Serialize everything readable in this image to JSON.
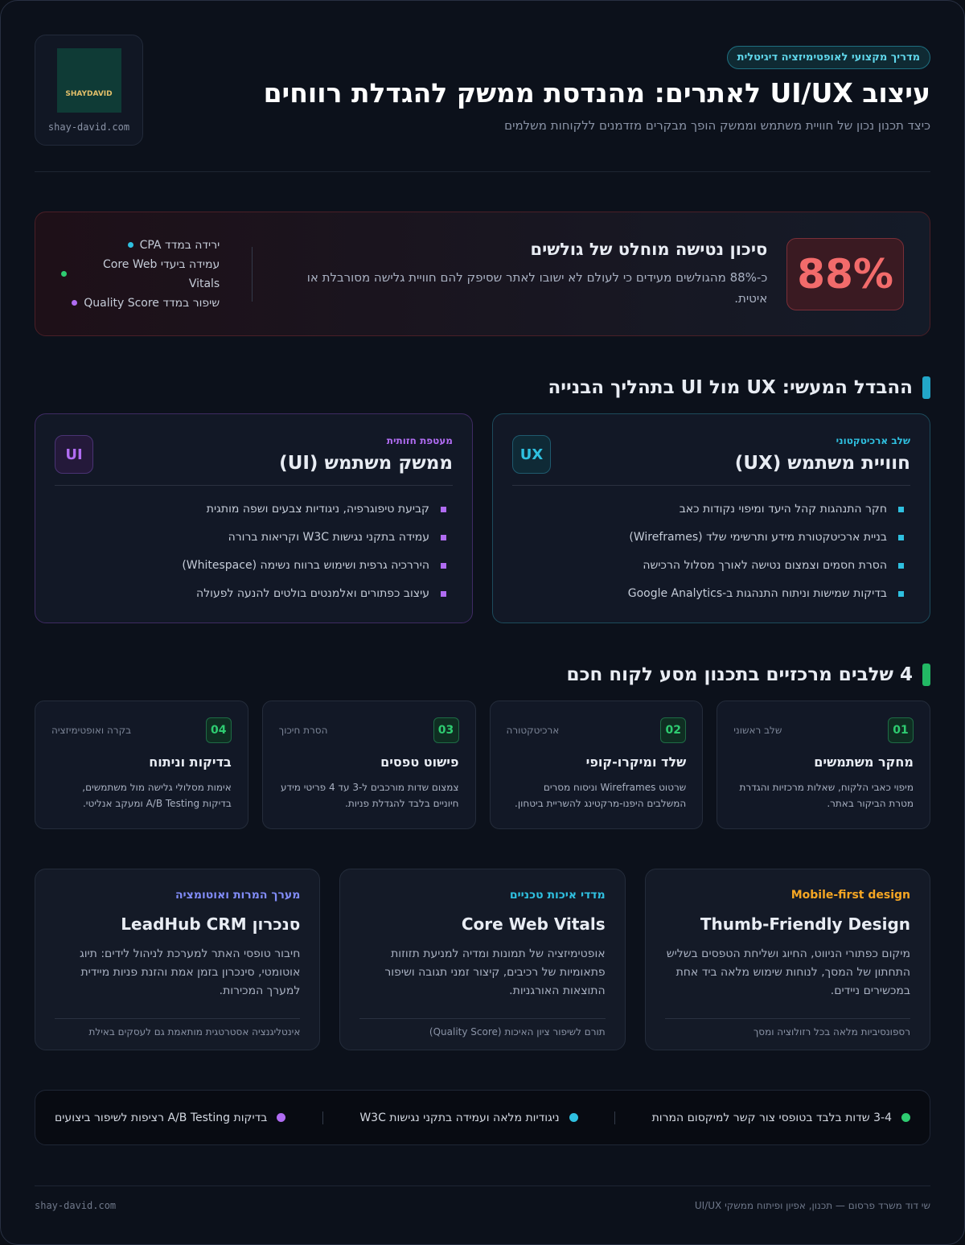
{
  "header": {
    "badge": "מדריך מקצועי לאופטימיזציה דיגיטלית",
    "title": "עיצוב UI/UX לאתרים: מהנדסת ממשק להגדלת רווחים",
    "subtitle": "כיצד תכנון נכון של חוויית משתמש וממשק הופך מבקרים מזדמנים ללקוחות משלמים"
  },
  "logo": {
    "text": "SHAYDAVID",
    "domain": "shay-david.com"
  },
  "stat": {
    "value": "88%",
    "title": "סיכון נטישה מוחלט של גולשים",
    "text": "כ-88% מהגולשים מעידים כי לעולם לא ישובו לאתר שסיפק להם חוויית גלישה מסורבלת או איטית.",
    "bullets": [
      "ירידה במדד CPA",
      "עמידה ביעדי Core Web Vitals",
      "שיפור במדד Quality Score"
    ]
  },
  "comparison": {
    "heading": "ההבדל המעשי: UX מול UI בתהליך הבנייה",
    "cards": [
      {
        "label": "שלב ארכיטקטוני",
        "title": "חוויית משתמש (UX)",
        "badge": "UX",
        "items": [
          "חקר התנהגות קהל היעד ומיפוי נקודות כאב",
          "בניית ארכיטקטורת מידע ותרשימי שלד (Wireframes)",
          "הסרת חסמים וצמצום נטישה לאורך מסלול הרכישה",
          "בדיקות שמישות וניתוח התנהגות ב-Google Analytics"
        ]
      },
      {
        "label": "מעטפת חזותית",
        "title": "ממשק משתמש (UI)",
        "badge": "UI",
        "items": [
          "קביעת טיפוגרפיה, ניגודיות צבעים ושפה מותגית",
          "עמידה בתקני נגישות W3C וקריאות ברורה",
          "היררכיה גרפית ושימוש ברווח נשימה (Whitespace)",
          "עיצוב כפתורים ואלמנטים בולטים להנעה לפעולה"
        ]
      }
    ]
  },
  "steps": {
    "heading": "4 שלבים מרכזיים בתכנון מסע לקוח חכם",
    "items": [
      {
        "number": "01",
        "tag": "שלב ראשוני",
        "title": "מחקר משתמשים",
        "text": "מיפוי כאבי הלקוח, שאלות מרכזיות והגדרת מטרת הביקור באתר."
      },
      {
        "number": "02",
        "tag": "ארכיטקטורה",
        "title": "שלד ומיקרו-קופי",
        "text": "שרטוט Wireframes וניסוח מסרים המשלבים היפנו-מרקטינג להשריית ביטחון."
      },
      {
        "number": "03",
        "tag": "הסרת חיכוך",
        "title": "פישוט טפסים",
        "text": "צמצום שדות מורכבים ל-3 עד 4 פריטי מידע חיוניים בלבד להגדלת פניות."
      },
      {
        "number": "04",
        "tag": "בקרה ואופטימיזציה",
        "title": "בדיקות וניתוח",
        "text": "אימות מסלולי גלישה מול משתמשים, בדיקות A/B Testing ומעקב אנליטי."
      }
    ]
  },
  "features": [
    {
      "label": "Mobile-first design",
      "title": "Thumb-Friendly Design",
      "text": "מיקום כפתורי הניווט, החיוג ושליחת הטפסים בשליש התחתון של המסך, לנוחות שימוש מלאה ביד אחת במכשירים ניידים.",
      "note": "רספונסיביות מלאה בכל רזולוציה ומסך"
    },
    {
      "label": "מדדי איכות טכניים",
      "title": "Core Web Vitals",
      "text": "אופטימיזציה של תמונות ומדיה למניעת תזוזות פתאומיות של רכיבים, קיצור זמני תגובה ושיפור התוצאות האורגניות.",
      "note": "תורם לשיפור ציון האיכות (Quality Score)"
    },
    {
      "label": "מערך המרות ואוטומציה",
      "title": "סנכרון LeadHub CRM",
      "text": "חיבור טופסי האתר למערכת לניהול לידים: תיוג אוטומטי, סינכרון בזמן אמת והזנת פניות מיידית למערך המכירות.",
      "note": "אינטליגנציה אסטרטגית מותאמת גם לעסקים באילת"
    }
  ],
  "highlights": [
    "3-4 שדות בלבד בטופסי צור קשר למיקסום המרות",
    "ניגודיות מלאה ועמידה בתקני נגישות W3C",
    "בדיקות A/B Testing רציפות לשיפור ביצועים"
  ],
  "footer": {
    "credit": "שי דוד משרד פרסום — תכנון, אפיון ופיתוח ממשקי UI/UX",
    "domain": "shay-david.com"
  }
}
